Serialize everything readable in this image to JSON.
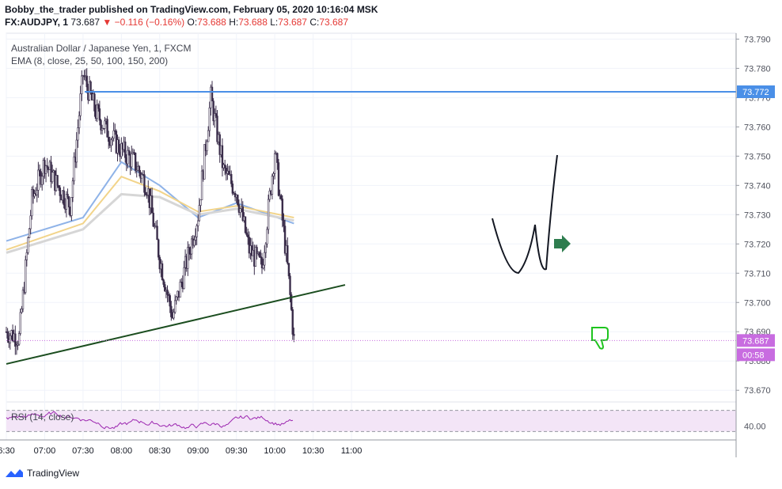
{
  "header": {
    "publisher_line": "Bobby_the_trader published on TradingView.com, February 05, 2020 10:16:04 MSK",
    "symbol": "FX:AUDJPY, 1",
    "last": "73.687",
    "change": "▼ −0.116 (−0.16%)",
    "open_label": "O:",
    "open": "73.688",
    "high_label": "H:",
    "high": "73.688",
    "low_label": "L:",
    "low": "73.687",
    "close_label": "C:",
    "close": "73.687"
  },
  "legend": {
    "instrument": "Australian Dollar / Japanese Yen, 1, FXCM",
    "ema": "EMA (8, close, 25, 50, 100, 150, 200)",
    "rsi": "RSI (14, close)"
  },
  "footer": {
    "brand": "TradingView"
  },
  "colors": {
    "bull": "#ffffff",
    "bear": "#3a2d4a",
    "hline": "#4a8fe7",
    "trend": "#1b4d1f",
    "ema_blue": "#8fb3e8",
    "ema_yellow": "#f2d48a",
    "ema_gray": "#d6d6d6",
    "rsi": "#9c27b0",
    "label_purple": "#c86ce0"
  },
  "chart_data": {
    "type": "candlestick",
    "x_ticks": [
      "6:30",
      "07:00",
      "07:30",
      "08:00",
      "08:30",
      "09:00",
      "09:30",
      "10:00",
      "10:30",
      "11:00"
    ],
    "y_ticks": [
      "73.790",
      "73.780",
      "73.770",
      "73.760",
      "73.750",
      "73.740",
      "73.730",
      "73.720",
      "73.710",
      "73.700",
      "73.690",
      "73.680",
      "73.670"
    ],
    "ylim": [
      73.666,
      73.792
    ],
    "price_labels": {
      "last": "73.687",
      "countdown": "00:58",
      "resistance": "73.772"
    },
    "resistance_level": 73.772,
    "trendline": {
      "from": [
        "06:30",
        73.679
      ],
      "to": [
        "10:55",
        73.706
      ]
    },
    "close_path": [
      [
        "06:30",
        73.69
      ],
      [
        "06:40",
        73.688
      ],
      [
        "06:50",
        73.735
      ],
      [
        "07:00",
        73.748
      ],
      [
        "07:10",
        73.74
      ],
      [
        "07:20",
        73.733
      ],
      [
        "07:30",
        73.778
      ],
      [
        "07:40",
        73.765
      ],
      [
        "07:50",
        73.758
      ],
      [
        "08:00",
        73.752
      ],
      [
        "08:10",
        73.748
      ],
      [
        "08:20",
        73.74
      ],
      [
        "08:30",
        73.715
      ],
      [
        "08:40",
        73.695
      ],
      [
        "08:50",
        73.712
      ],
      [
        "09:00",
        73.73
      ],
      [
        "09:10",
        73.77
      ],
      [
        "09:20",
        73.745
      ],
      [
        "09:30",
        73.738
      ],
      [
        "09:40",
        73.718
      ],
      [
        "09:50",
        73.712
      ],
      [
        "10:00",
        73.752
      ],
      [
        "10:10",
        73.712
      ],
      [
        "10:15",
        73.687
      ]
    ],
    "ema_series": [
      {
        "points": [
          [
            "06:30",
            73.721
          ],
          [
            "07:30",
            73.729
          ],
          [
            "08:00",
            73.748
          ],
          [
            "08:30",
            73.74
          ],
          [
            "09:00",
            73.729
          ],
          [
            "09:30",
            73.734
          ],
          [
            "10:15",
            73.727
          ]
        ]
      },
      {
        "points": [
          [
            "06:30",
            73.718
          ],
          [
            "07:30",
            73.727
          ],
          [
            "08:00",
            73.743
          ],
          [
            "08:30",
            73.738
          ],
          [
            "09:00",
            73.731
          ],
          [
            "09:30",
            73.733
          ],
          [
            "10:15",
            73.729
          ]
        ]
      },
      {
        "points": [
          [
            "06:30",
            73.717
          ],
          [
            "07:30",
            73.725
          ],
          [
            "08:00",
            73.737
          ],
          [
            "08:30",
            73.736
          ],
          [
            "09:00",
            73.73
          ],
          [
            "09:30",
            73.732
          ],
          [
            "10:15",
            73.728
          ]
        ]
      }
    ],
    "rsi": {
      "ylim": [
        20,
        80
      ],
      "y_tick": "40.00",
      "band": [
        30,
        70
      ]
    }
  }
}
